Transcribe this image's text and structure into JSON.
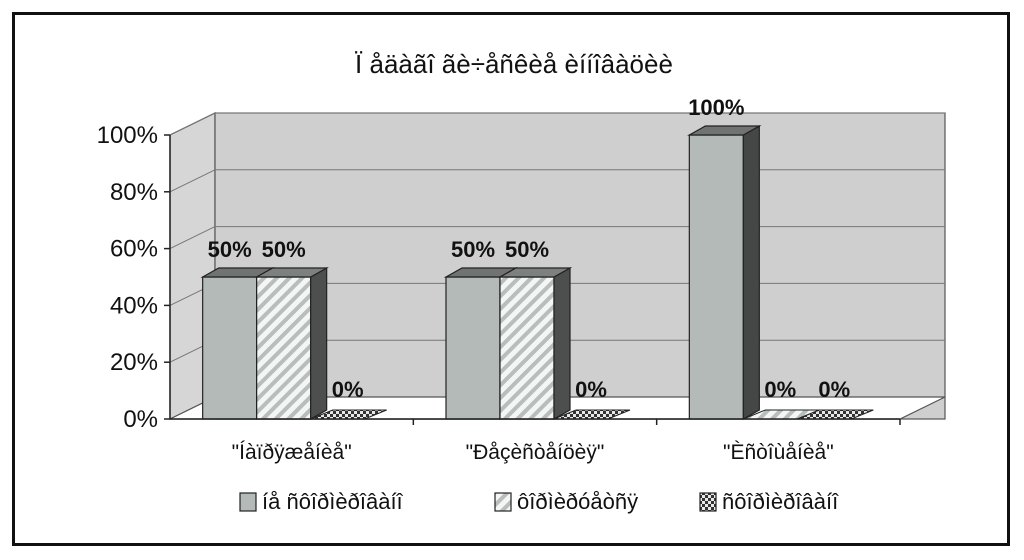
{
  "chart_data": {
    "type": "bar",
    "title": "Ï åäàãî ãè÷åñêèå èííîâàöèè",
    "categories": [
      "\"Íàïðÿæåíèå\"",
      "\"Ðåçèñòåíöèÿ\"",
      "\"Èñòîùåíèå\""
    ],
    "series": [
      {
        "name": "íå ñôîðìèðîâàíî",
        "values": [
          50,
          50,
          100
        ],
        "color": "#b4bab8",
        "pattern": "solid"
      },
      {
        "name": "ôîðìèðóåòñÿ",
        "values": [
          50,
          50,
          0
        ],
        "color": "#c8cfcc",
        "pattern": "diagonal"
      },
      {
        "name": "ñôîðìèðîâàíî",
        "values": [
          0,
          0,
          0
        ],
        "color": "#3a3a3a",
        "pattern": "checker"
      }
    ],
    "data_labels": [
      [
        "50%",
        "50%",
        "0%"
      ],
      [
        "50%",
        "50%",
        "0%"
      ],
      [
        "100%",
        "0%",
        "0%"
      ]
    ],
    "yticks": [
      "0%",
      "20%",
      "40%",
      "60%",
      "80%",
      "100%"
    ],
    "ylim": [
      0,
      100
    ],
    "grid": true,
    "legend_position": "bottom",
    "three_d": true
  }
}
